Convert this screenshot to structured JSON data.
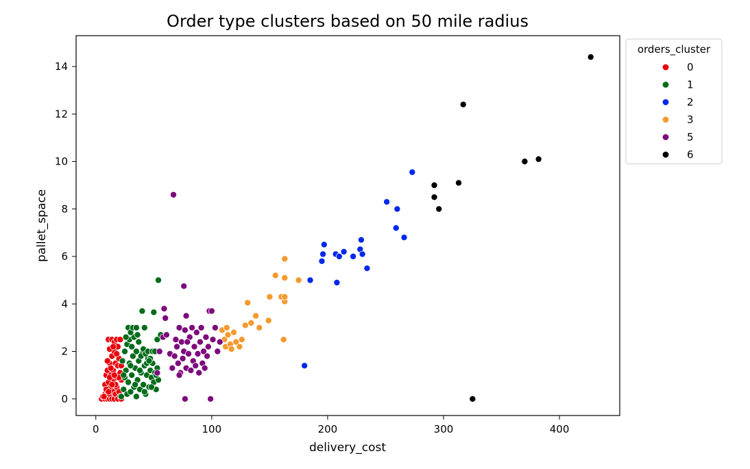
{
  "chart_data": {
    "type": "scatter",
    "title": "Order type clusters based on 50 mile radius",
    "xlabel": "delivery_cost",
    "ylabel": "pallet_space",
    "xlim": [
      -17,
      452
    ],
    "ylim": [
      -0.7,
      15.3
    ],
    "xticks": [
      "0",
      "100",
      "200",
      "300",
      "400"
    ],
    "xtick_values": [
      0,
      100,
      200,
      300,
      400
    ],
    "yticks": [
      "0",
      "2",
      "4",
      "6",
      "8",
      "10",
      "12",
      "14"
    ],
    "ytick_values": [
      0,
      2,
      4,
      6,
      8,
      10,
      12,
      14
    ],
    "grid": false,
    "legend": {
      "title": "orders_cluster",
      "placement": "outside-top-right",
      "entries": [
        {
          "label": "0",
          "color": "#e8000b"
        },
        {
          "label": "1",
          "color": "#006b19"
        },
        {
          "label": "2",
          "color": "#0028e8"
        },
        {
          "label": "3",
          "color": "#f49a2e"
        },
        {
          "label": "5",
          "color": "#7d0a7d"
        },
        {
          "label": "6",
          "color": "#000000"
        }
      ]
    },
    "series": [
      {
        "name": "0",
        "color": "#e8000b",
        "points": [
          [
            5,
            0
          ],
          [
            6,
            0.1
          ],
          [
            8,
            0
          ],
          [
            8,
            0.2
          ],
          [
            10,
            0
          ],
          [
            10,
            0.3
          ],
          [
            12,
            0
          ],
          [
            12,
            0.2
          ],
          [
            13,
            0.5
          ],
          [
            14,
            0
          ],
          [
            15,
            0.3
          ],
          [
            15,
            0.8
          ],
          [
            16,
            0
          ],
          [
            17,
            0.2
          ],
          [
            18,
            0.5
          ],
          [
            19,
            0
          ],
          [
            20,
            0.3
          ],
          [
            21,
            0.1
          ],
          [
            22,
            0
          ],
          [
            8,
            0.6
          ],
          [
            9,
            1.0
          ],
          [
            10,
            1.2
          ],
          [
            11,
            0.7
          ],
          [
            12,
            1.5
          ],
          [
            13,
            1.0
          ],
          [
            14,
            1.8
          ],
          [
            15,
            1.2
          ],
          [
            16,
            2.0
          ],
          [
            17,
            1.5
          ],
          [
            18,
            0.9
          ],
          [
            19,
            1.4
          ],
          [
            20,
            1.7
          ],
          [
            21,
            1.1
          ],
          [
            22,
            0.8
          ],
          [
            11,
            2.5
          ],
          [
            12,
            2.1
          ],
          [
            14,
            2.5
          ],
          [
            16,
            2.4
          ],
          [
            18,
            2.5
          ],
          [
            19,
            2.2
          ],
          [
            21,
            2.5
          ],
          [
            13,
            1.3
          ],
          [
            15,
            2.2
          ],
          [
            17,
            0.6
          ],
          [
            20,
            0.9
          ],
          [
            9,
            0.4
          ],
          [
            11,
            0.3
          ],
          [
            7,
            0.1
          ],
          [
            12,
            0.9
          ],
          [
            14,
            0.6
          ],
          [
            16,
            1.0
          ],
          [
            18,
            1.9
          ],
          [
            22,
            1.4
          ],
          [
            10,
            1.6
          ]
        ]
      },
      {
        "name": "1",
        "color": "#006b19",
        "points": [
          [
            22,
            0.1
          ],
          [
            24,
            0.4
          ],
          [
            25,
            0.9
          ],
          [
            26,
            1.2
          ],
          [
            27,
            0.2
          ],
          [
            28,
            0.7
          ],
          [
            29,
            1.5
          ],
          [
            30,
            0.3
          ],
          [
            31,
            1.0
          ],
          [
            32,
            1.8
          ],
          [
            33,
            0.5
          ],
          [
            34,
            1.3
          ],
          [
            35,
            0.1
          ],
          [
            36,
            0.8
          ],
          [
            37,
            1.6
          ],
          [
            38,
            0.4
          ],
          [
            39,
            1.1
          ],
          [
            40,
            1.9
          ],
          [
            41,
            0.6
          ],
          [
            42,
            1.4
          ],
          [
            43,
            0.2
          ],
          [
            44,
            1.0
          ],
          [
            45,
            1.7
          ],
          [
            46,
            0.5
          ],
          [
            47,
            1.2
          ],
          [
            48,
            0.9
          ],
          [
            49,
            1.5
          ],
          [
            50,
            0.7
          ],
          [
            51,
            1.1
          ],
          [
            52,
            0.4
          ],
          [
            53,
            1.3
          ],
          [
            54,
            0.8
          ],
          [
            23,
            1.6
          ],
          [
            25,
            2.0
          ],
          [
            27,
            2.3
          ],
          [
            29,
            2.5
          ],
          [
            31,
            2.2
          ],
          [
            33,
            2.6
          ],
          [
            35,
            2.0
          ],
          [
            37,
            2.4
          ],
          [
            39,
            1.8
          ],
          [
            41,
            2.1
          ],
          [
            43,
            1.9
          ],
          [
            45,
            2.0
          ],
          [
            47,
            1.7
          ],
          [
            49,
            2.0
          ],
          [
            51,
            2.0
          ],
          [
            53,
            2.5
          ],
          [
            28,
            3.0
          ],
          [
            30,
            2.8
          ],
          [
            32,
            3.0
          ],
          [
            35,
            3.0
          ],
          [
            42,
            3.0
          ],
          [
            40,
            3.7
          ],
          [
            50,
            3.65
          ],
          [
            56,
            2.7
          ],
          [
            26,
            2.6
          ],
          [
            36,
            2.7
          ],
          [
            44,
            1.5
          ],
          [
            54,
            5.0
          ],
          [
            30,
            1.4
          ],
          [
            38,
            1.2
          ],
          [
            46,
            1.6
          ],
          [
            34,
            0.6
          ],
          [
            24,
            1.0
          ],
          [
            42,
            0.3
          ],
          [
            48,
            0.5
          ],
          [
            52,
            1.0
          ]
        ]
      },
      {
        "name": "2",
        "color": "#0028e8",
        "points": [
          [
            180,
            1.4
          ],
          [
            185,
            5.0
          ],
          [
            195,
            5.8
          ],
          [
            196,
            6.1
          ],
          [
            197,
            6.5
          ],
          [
            207,
            6.1
          ],
          [
            208,
            4.9
          ],
          [
            210,
            6.0
          ],
          [
            214,
            6.2
          ],
          [
            222,
            6.0
          ],
          [
            228,
            6.3
          ],
          [
            229,
            6.7
          ],
          [
            230,
            6.1
          ],
          [
            234,
            5.5
          ],
          [
            251,
            8.3
          ],
          [
            260,
            8.0
          ],
          [
            259,
            7.2
          ],
          [
            266,
            6.8
          ],
          [
            273,
            9.55
          ]
        ]
      },
      {
        "name": "3",
        "color": "#f49a2e",
        "points": [
          [
            109,
            2.9
          ],
          [
            111,
            2.5
          ],
          [
            112,
            2.2
          ],
          [
            113,
            3.0
          ],
          [
            114,
            2.7
          ],
          [
            116,
            2.3
          ],
          [
            117,
            2.1
          ],
          [
            119,
            2.8
          ],
          [
            121,
            2.4
          ],
          [
            124,
            2.2
          ],
          [
            126,
            2.5
          ],
          [
            129,
            3.1
          ],
          [
            131,
            4.05
          ],
          [
            134,
            3.2
          ],
          [
            138,
            3.5
          ],
          [
            141,
            3.0
          ],
          [
            149,
            3.3
          ],
          [
            150,
            4.3
          ],
          [
            155,
            5.2
          ],
          [
            160,
            4.3
          ],
          [
            162,
            2.5
          ],
          [
            163,
            4.1
          ],
          [
            163,
            4.3
          ],
          [
            163,
            5.1
          ],
          [
            163,
            5.9
          ],
          [
            175,
            5.0
          ]
        ]
      },
      {
        "name": "5",
        "color": "#7d0a7d",
        "points": [
          [
            53,
            1.1
          ],
          [
            55,
            2.0
          ],
          [
            58,
            2.6
          ],
          [
            59,
            3.8
          ],
          [
            60,
            3.4
          ],
          [
            61,
            2.7
          ],
          [
            64,
            1.9
          ],
          [
            66,
            1.3
          ],
          [
            67,
            8.6
          ],
          [
            68,
            1.8
          ],
          [
            70,
            2.2
          ],
          [
            71,
            1.5
          ],
          [
            72,
            3.0
          ],
          [
            73,
            1.1
          ],
          [
            74,
            2.4
          ],
          [
            75,
            1.7
          ],
          [
            76,
            4.75
          ],
          [
            76,
            2.0
          ],
          [
            77,
            0
          ],
          [
            78,
            1.3
          ],
          [
            78,
            3.5
          ],
          [
            80,
            1.9
          ],
          [
            81,
            2.6
          ],
          [
            82,
            1.2
          ],
          [
            83,
            3.0
          ],
          [
            84,
            1.6
          ],
          [
            85,
            2.2
          ],
          [
            86,
            1.4
          ],
          [
            87,
            2.8
          ],
          [
            88,
            1.9
          ],
          [
            90,
            2.4
          ],
          [
            91,
            3.0
          ],
          [
            92,
            1.5
          ],
          [
            93,
            2.0
          ],
          [
            95,
            2.6
          ],
          [
            96,
            1.8
          ],
          [
            97,
            2.2
          ],
          [
            98,
            3.7
          ],
          [
            99,
            0
          ],
          [
            100,
            3.7
          ],
          [
            101,
            2.5
          ],
          [
            103,
            3.0
          ],
          [
            105,
            2.0
          ],
          [
            107,
            2.4
          ],
          [
            69,
            2.5
          ],
          [
            72,
            1.0
          ],
          [
            77,
            2.9
          ],
          [
            79,
            2.4
          ],
          [
            89,
            1.1
          ],
          [
            94,
            1.3
          ]
        ]
      },
      {
        "name": "6",
        "color": "#000000",
        "points": [
          [
            292,
            9.0
          ],
          [
            292,
            8.5
          ],
          [
            296,
            8.0
          ],
          [
            313,
            9.1
          ],
          [
            317,
            12.4
          ],
          [
            325,
            0
          ],
          [
            370,
            10.0
          ],
          [
            382,
            10.1
          ],
          [
            427,
            14.4
          ]
        ]
      }
    ]
  }
}
